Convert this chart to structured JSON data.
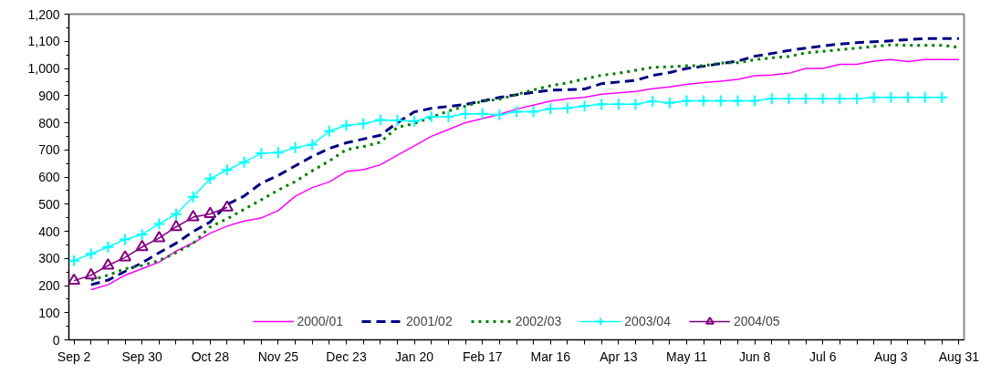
{
  "chart_data": {
    "type": "line",
    "categories": [
      "Sep 2",
      null,
      null,
      null,
      "Sep 30",
      null,
      null,
      null,
      "Oct 28",
      null,
      null,
      null,
      "Nov 25",
      null,
      null,
      null,
      "Dec 23",
      null,
      null,
      null,
      "Jan 20",
      null,
      null,
      null,
      "Feb 17",
      null,
      null,
      null,
      "Mar 16",
      null,
      null,
      null,
      "Apr 13",
      null,
      null,
      null,
      "May 11",
      null,
      null,
      null,
      "Jun 8",
      null,
      null,
      null,
      "Jul 6",
      null,
      null,
      null,
      "Aug 3",
      null,
      null,
      null,
      "Aug 31"
    ],
    "series": [
      {
        "name": "2000/01",
        "color": "#ff00ff",
        "line_style": "solid",
        "marker": "none",
        "values": [
          null,
          185,
          203,
          238,
          262,
          286,
          327,
          357,
          393,
          419,
          438,
          449,
          476,
          529,
          561,
          582,
          620,
          627,
          645,
          680,
          715,
          750,
          775,
          800,
          815,
          831,
          850,
          865,
          880,
          888,
          893,
          905,
          910,
          915,
          925,
          932,
          941,
          948,
          953,
          960,
          973,
          976,
          982,
          1000,
          1000,
          1015,
          1015,
          1027,
          1033,
          1025,
          1033,
          1033,
          1033
        ]
      },
      {
        "name": "2001/02",
        "color": "#000080",
        "line_style": "dashed",
        "marker": "none",
        "values": [
          null,
          203,
          220,
          252,
          284,
          321,
          356,
          399,
          434,
          499,
          530,
          577,
          606,
          641,
          676,
          705,
          726,
          740,
          754,
          800,
          840,
          853,
          860,
          867,
          880,
          893,
          903,
          912,
          920,
          922,
          924,
          944,
          950,
          956,
          974,
          985,
          1000,
          1008,
          1018,
          1027,
          1045,
          1055,
          1066,
          1075,
          1083,
          1090,
          1095,
          1098,
          1102,
          1106,
          1110,
          1110,
          1110
        ]
      },
      {
        "name": "2002/03",
        "color": "#008000",
        "line_style": "dotted",
        "marker": "none",
        "values": [
          null,
          220,
          238,
          262,
          274,
          292,
          321,
          356,
          416,
          446,
          481,
          516,
          552,
          583,
          623,
          659,
          701,
          712,
          728,
          783,
          797,
          820,
          843,
          861,
          879,
          886,
          904,
          921,
          936,
          947,
          961,
          975,
          982,
          993,
          1004,
          1006,
          1010,
          1010,
          1020,
          1021,
          1032,
          1039,
          1044,
          1057,
          1063,
          1069,
          1075,
          1081,
          1087,
          1085,
          1085,
          1085,
          1078
        ]
      },
      {
        "name": "2003/04",
        "color": "#00ffff",
        "line_style": "solid",
        "marker": "cross",
        "values": [
          292,
          317,
          342,
          370,
          388,
          427,
          463,
          527,
          594,
          626,
          655,
          687,
          690,
          708,
          719,
          769,
          790,
          797,
          810,
          808,
          805,
          822,
          822,
          833,
          833,
          829,
          840,
          840,
          851,
          854,
          861,
          868,
          868,
          868,
          879,
          873,
          881,
          881,
          881,
          881,
          881,
          888,
          888,
          888,
          888,
          888,
          888,
          893,
          893,
          893,
          893,
          893,
          null
        ]
      },
      {
        "name": "2004/05",
        "color": "#800080",
        "line_style": "solid",
        "marker": "triangle",
        "values": [
          218,
          238,
          274,
          304,
          342,
          375,
          416,
          452,
          464,
          488,
          null,
          null,
          null,
          null,
          null,
          null,
          null,
          null,
          null,
          null,
          null,
          null,
          null,
          null,
          null,
          null,
          null,
          null,
          null,
          null,
          null,
          null,
          null,
          null,
          null,
          null,
          null,
          null,
          null,
          null,
          null,
          null,
          null,
          null,
          null,
          null,
          null,
          null,
          null,
          null,
          null,
          null,
          null
        ]
      }
    ],
    "ylim": [
      0,
      1200
    ],
    "yticks": [
      0,
      100,
      200,
      300,
      400,
      500,
      600,
      700,
      800,
      900,
      {
        "value": 1000,
        "label": "1,000"
      },
      {
        "value": 1100,
        "label": "1,100"
      },
      {
        "value": 1200,
        "label": "1,200"
      }
    ],
    "grid": false,
    "legend": "bottom"
  }
}
